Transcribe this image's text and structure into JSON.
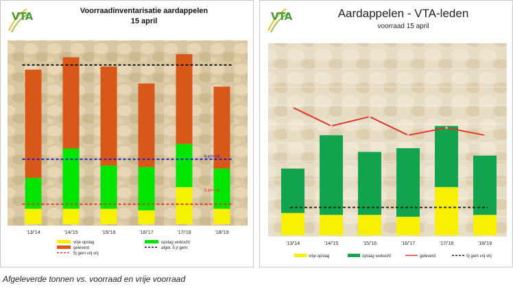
{
  "left_panel": {
    "logo": "VTA",
    "title": "Voorraadinventarisatie aardappelen",
    "subtitle": "15 april"
  },
  "right_panel": {
    "logo": "VTA",
    "title": "Aardappelen - VTA-leden",
    "subtitle": "voorraad 15 april"
  },
  "caption": "Afgeleverde tonnen vs. voorraad en vrije voorraad",
  "colors": {
    "yellow": "#f7f100",
    "bright_green": "#00e400",
    "dark_green": "#11a34d",
    "orange": "#d8581a",
    "red": "#e0352c",
    "black_dash": "#111111",
    "blue_dash": "#1d1dc2"
  },
  "chart_data": [
    {
      "type": "bar",
      "stacked": true,
      "categories": [
        "'13/'14",
        "'14/'15",
        "'15/'16",
        "'16/'17",
        "'17/'18",
        "'18/'19"
      ],
      "ylim": [
        0,
        110
      ],
      "series": [
        {
          "name": "vrije opslag",
          "color": "#f7f100",
          "values": [
            10,
            10,
            10,
            9,
            24,
            10
          ]
        },
        {
          "name": "opslag verkocht",
          "color": "#00e400",
          "values": [
            20,
            39,
            28,
            28,
            28,
            26
          ]
        },
        {
          "name": "geleverd",
          "color": "#d8581a",
          "values": [
            70,
            59,
            64,
            54,
            58,
            53
          ]
        }
      ],
      "lines": [
        {
          "name": "afgel. 5 jr gem.",
          "color": "#111111",
          "value": 103
        },
        {
          "name": "5j gem vrij",
          "color": "#1d1dc2",
          "value": 42
        },
        {
          "name": "5j gem vrij vrij",
          "color": "#e0352c",
          "value": 13
        }
      ],
      "annotations": [
        {
          "text": "5j gem vrij",
          "color": "#1d1dc2",
          "value": 42
        },
        {
          "text": "5j gem vrij",
          "color": "#e0352c",
          "value": 20
        }
      ],
      "legend": [
        "vrije opslag",
        "opslag verkocht",
        "geleverd",
        "afgel. 5 jr gem.",
        "5j gem vrij vrij"
      ],
      "legend_position": "bottom"
    },
    {
      "type": "bar",
      "stacked": true,
      "categories": [
        "'13/'14",
        "'14/'15",
        "'15/'16",
        "'16/'17",
        "'17/'18",
        "'18/'19"
      ],
      "ylim": [
        0,
        100
      ],
      "series": [
        {
          "name": "vrije opslag",
          "color": "#f7f100",
          "values": [
            12,
            11,
            11,
            10,
            26,
            11
          ]
        },
        {
          "name": "opslag verkocht",
          "color": "#11a34d",
          "values": [
            24,
            43,
            34,
            37,
            33,
            32
          ]
        }
      ],
      "lines": [
        {
          "name": "geleverd",
          "color": "#e0352c",
          "values": [
            69,
            59,
            64,
            54,
            58,
            54
          ]
        },
        {
          "name": "5j gem vrij vrij",
          "color": "#111111",
          "value": 15
        }
      ],
      "legend": [
        "vrije opslag",
        "opslag verkocht",
        "geleverd",
        "5j gem vrij vrij"
      ],
      "legend_position": "bottom"
    }
  ]
}
